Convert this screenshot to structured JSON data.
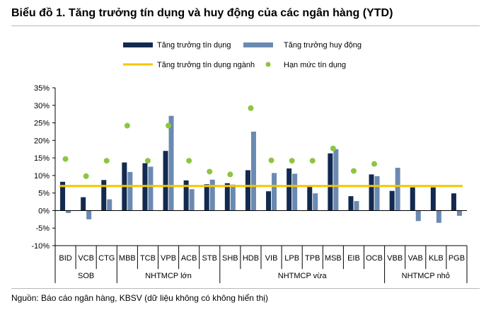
{
  "title": "Biểu đồ 1. Tăng trưởng tín dụng và huy động của các ngân hàng (YTD)",
  "source": "Nguồn: Báo cáo ngân hàng, KBSV (dữ liệu không có không hiển thị)",
  "chart_data": {
    "type": "bar",
    "categories": [
      "BID",
      "VCB",
      "CTG",
      "MBB",
      "TCB",
      "VPB",
      "ACB",
      "STB",
      "SHB",
      "HDB",
      "VIB",
      "LPB",
      "TPB",
      "MSB",
      "EIB",
      "OCB",
      "VBB",
      "VAB",
      "KLB",
      "PGB"
    ],
    "groups": [
      {
        "label": "SOB",
        "count": 3
      },
      {
        "label": "NHTMCP lớn",
        "count": 5
      },
      {
        "label": "NHTMCP vừa",
        "count": 8
      },
      {
        "label": "NHTMCP nhỏ",
        "count": 4
      }
    ],
    "series": [
      {
        "name": "Tăng trưởng tín dụng",
        "kind": "bar",
        "color": "#132a50",
        "values": [
          8.2,
          3.8,
          8.7,
          13.7,
          13.5,
          17.0,
          8.6,
          7.5,
          7.8,
          11.5,
          5.5,
          12.0,
          6.8,
          16.3,
          4.1,
          10.3,
          5.6,
          6.6,
          6.6,
          4.9
        ]
      },
      {
        "name": "Tăng trưởng huy động",
        "kind": "bar",
        "color": "#6a8ab2",
        "values": [
          -0.7,
          -2.5,
          3.2,
          11.0,
          12.5,
          27.0,
          6.1,
          8.8,
          7.4,
          22.5,
          10.7,
          10.5,
          4.9,
          17.5,
          2.7,
          9.8,
          12.2,
          -3.0,
          -3.5,
          -1.5
        ]
      },
      {
        "name": "Tăng trưởng tín dụng ngành",
        "kind": "line",
        "color": "#f7c500",
        "value": 7.0
      },
      {
        "name": "Hạn mức tín dụng",
        "kind": "dot",
        "color": "#8cc63f",
        "values": [
          14.7,
          9.8,
          14.2,
          24.2,
          14.2,
          24.2,
          14.2,
          11.1,
          10.3,
          29.2,
          14.3,
          14.2,
          14.2,
          17.7,
          11.3,
          13.3,
          null,
          null,
          null,
          null
        ]
      }
    ],
    "ylim": [
      -10,
      35
    ],
    "yticks": [
      -10,
      -5,
      0,
      5,
      10,
      15,
      20,
      25,
      30,
      35
    ],
    "ytick_labels": [
      "-10%",
      "-5%",
      "0%",
      "5%",
      "10%",
      "15%",
      "20%",
      "25%",
      "30%",
      "35%"
    ],
    "legend_position": "top",
    "grid": false
  }
}
